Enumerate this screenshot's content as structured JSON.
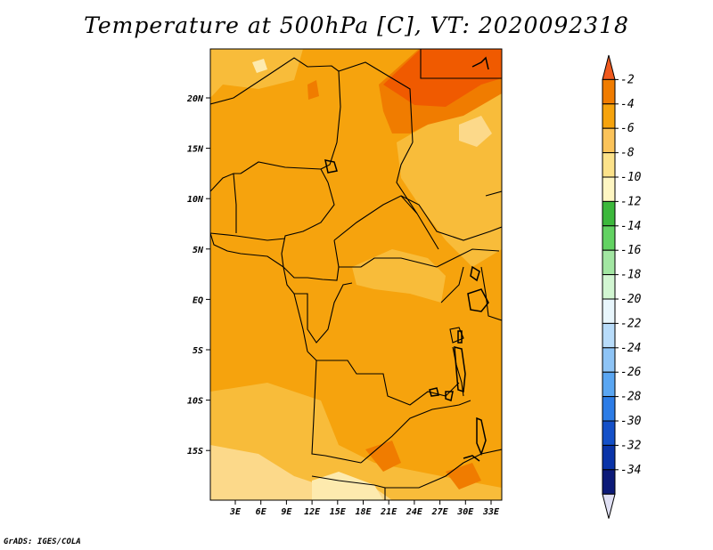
{
  "title": "Temperature at 500hPa [C], VT: 2020092318",
  "credit": "GrADS: IGES/COLA",
  "map": {
    "lon_labels": [
      "3E",
      "6E",
      "9E",
      "12E",
      "15E",
      "18E",
      "21E",
      "24E",
      "27E",
      "30E",
      "33E"
    ],
    "lat_labels": [
      "20N",
      "15N",
      "10N",
      "5N",
      "EQ",
      "5S",
      "10S",
      "15S"
    ],
    "field_colors": {
      "base": "#f6a30d",
      "warm": "#f07c00",
      "hot": "#f05a00",
      "cool": "#f8bc3a",
      "cooler": "#fcd98a",
      "coolest": "#fdeaae"
    },
    "border_color": "#000000"
  },
  "colorbar": {
    "labels": [
      "-2",
      "-4",
      "-6",
      "-8",
      "-10",
      "-12",
      "-14",
      "-16",
      "-18",
      "-20",
      "-22",
      "-24",
      "-26",
      "-28",
      "-30",
      "-32",
      "-34"
    ],
    "colors": [
      "#f05a1e",
      "#f07c00",
      "#f6a30d",
      "#fbc35a",
      "#fce28a",
      "#fef6c2",
      "#3cb83c",
      "#62d262",
      "#a2e6a2",
      "#d2f6d2",
      "#e8f6fc",
      "#b8dcfa",
      "#8ec4f6",
      "#5aa6f2",
      "#2c7ce6",
      "#1450c8",
      "#0a34a8",
      "#0c1a78",
      "#e0e0f4"
    ]
  }
}
